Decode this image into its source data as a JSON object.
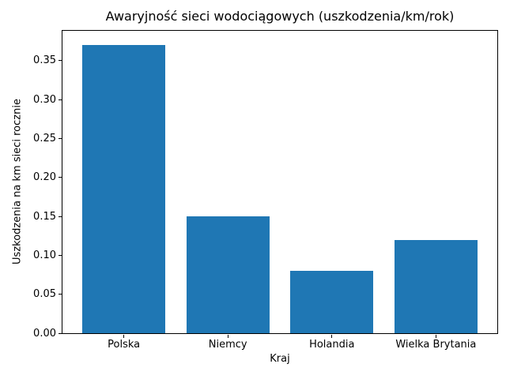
{
  "chart_data": {
    "type": "bar",
    "title": "Awaryjność sieci wodociągowych (uszkodzenia/km/rok)",
    "xlabel": "Kraj",
    "ylabel": "Uszkodzenia na km sieci rocznie",
    "categories": [
      "Polska",
      "Niemcy",
      "Holandia",
      "Wielka Brytania"
    ],
    "values": [
      0.37,
      0.15,
      0.08,
      0.12
    ],
    "yticks": [
      0.0,
      0.05,
      0.1,
      0.15,
      0.2,
      0.25,
      0.3,
      0.35
    ],
    "ytick_labels": [
      "0.00",
      "0.05",
      "0.10",
      "0.15",
      "0.20",
      "0.25",
      "0.30",
      "0.35"
    ],
    "ylim": [
      0,
      0.3885
    ],
    "xlim": [
      -0.59,
      3.59
    ],
    "bar_width": 0.8,
    "bar_color": "#1f77b4",
    "axis_color": "#000000",
    "background_color": "#ffffff",
    "grid": false,
    "legend": null
  }
}
